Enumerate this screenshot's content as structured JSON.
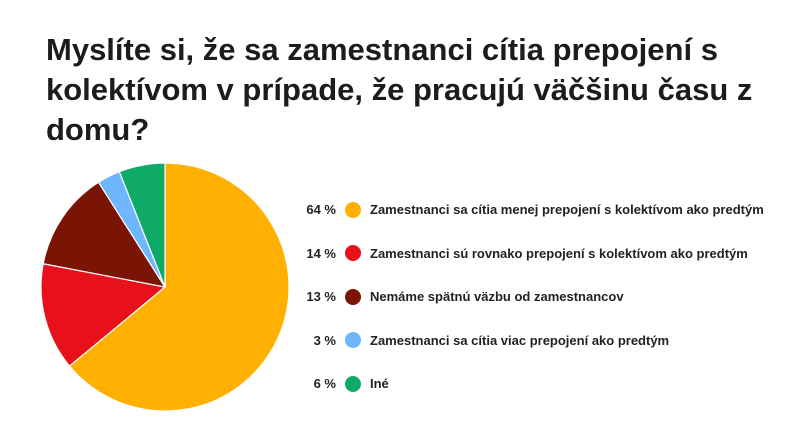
{
  "title": "Myslíte si, že sa zamestnanci cítia prepojení s kolektívom v prípade, že pracujú väčšinu času z domu?",
  "chart_data": {
    "type": "pie",
    "title": "Myslíte si, že sa zamestnanci cítia prepojení s kolektívom v prípade, že pracujú väčšinu času z domu?",
    "legend_position": "right",
    "slices": [
      {
        "label": "Zamestnanci sa cítia menej prepojení s kolektívom ako predtým",
        "value": 64,
        "value_label": "64 %",
        "color": "#FFB000"
      },
      {
        "label": "Zamestnanci sú rovnako prepojení s kolektívom ako predtým",
        "value": 14,
        "value_label": "14 %",
        "color": "#E8101A"
      },
      {
        "label": "Nemáme spätnú väzbu od zamestnancov",
        "value": 13,
        "value_label": "13 %",
        "color": "#7A1506"
      },
      {
        "label": "Zamestnanci sa cítia viac prepojení ako predtým",
        "value": 3,
        "value_label": "3 %",
        "color": "#6EB7FF"
      },
      {
        "label": "Iné",
        "value": 6,
        "value_label": "6 %",
        "color": "#0FA968"
      }
    ]
  }
}
